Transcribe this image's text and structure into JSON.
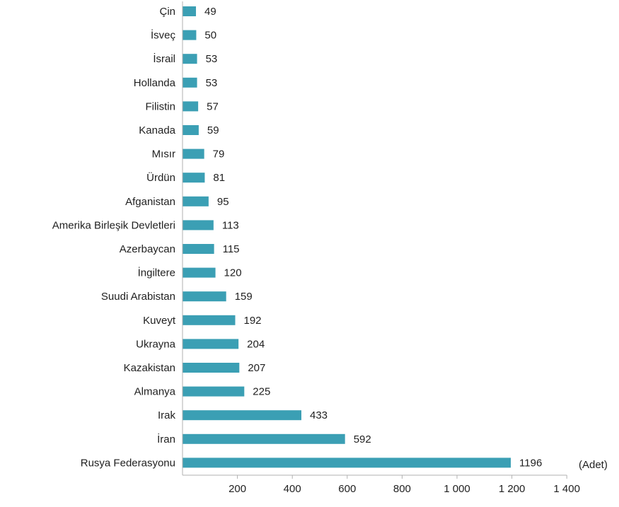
{
  "chart_data": {
    "type": "bar",
    "orientation": "horizontal",
    "categories": [
      "Çin",
      "İsveç",
      "İsrail",
      "Hollanda",
      "Filistin",
      "Kanada",
      "Mısır",
      "Ürdün",
      "Afganistan",
      "Amerika Birleşik Devletleri",
      "Azerbaycan",
      "İngiltere",
      "Suudi Arabistan",
      "Kuveyt",
      "Ukrayna",
      "Kazakistan",
      "Almanya",
      "Irak",
      "İran",
      "Rusya Federasyonu"
    ],
    "values": [
      49,
      50,
      53,
      53,
      57,
      59,
      79,
      81,
      95,
      113,
      115,
      120,
      159,
      192,
      204,
      207,
      225,
      433,
      592,
      1196
    ],
    "value_labels": [
      "49",
      "50",
      "53",
      "53",
      "57",
      "59",
      "79",
      "81",
      "95",
      "113",
      "115",
      "120",
      "159",
      "192",
      "204",
      "207",
      "225",
      "433",
      "592",
      "1196"
    ],
    "xlim": [
      0,
      1400
    ],
    "xticks": [
      200,
      400,
      600,
      800,
      1000,
      1200,
      1400
    ],
    "xtick_labels": [
      "200",
      "400",
      "600",
      "800",
      "1 000",
      "1 200",
      "1 400"
    ],
    "unit_label": "(Adet)",
    "bar_color": "#3b9fb4",
    "axis_color": "#b0b0b0",
    "grid": false,
    "legend": "none"
  }
}
